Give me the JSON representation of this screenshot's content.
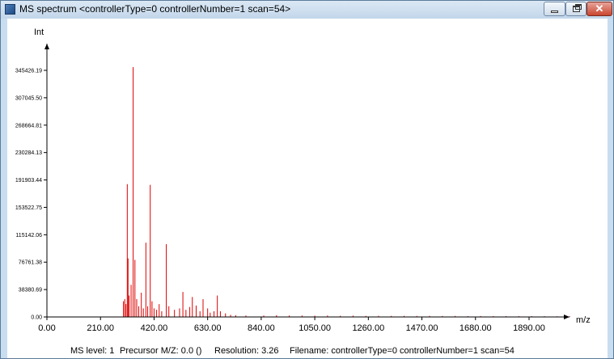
{
  "window": {
    "title": "MS spectrum <controllerType=0 controllerNumber=1 scan=54>",
    "icon": "app-icon",
    "controls": {
      "minimize": "minimize-icon",
      "maximize": "restore-icon",
      "close": "✕"
    }
  },
  "status": {
    "ms_level": "MS level: 1",
    "precursor": "Precursor M/Z: 0.0 ()",
    "resolution": "Resolution: 3.26",
    "filename": "Filename: controllerType=0 controllerNumber=1 scan=54"
  },
  "colors": {
    "peaks": "#dd0000",
    "titlebar": "#c9ddf0"
  },
  "chart_data": {
    "type": "bar",
    "ylabel": "Int",
    "xlabel": "m/z",
    "xlim": [
      0,
      2100
    ],
    "ylim": [
      0,
      383807.06
    ],
    "x_ticks": [
      "0.00",
      "210.00",
      "420.00",
      "630.00",
      "840.00",
      "1050.00",
      "1260.00",
      "1470.00",
      "1680.00",
      "1890.00"
    ],
    "y_ticks": [
      "0.00",
      "38380.69",
      "76761.38",
      "115142.06",
      "153522.75",
      "191903.44",
      "230284.13",
      "268664.81",
      "307045.50",
      "345426.19"
    ],
    "peaks": [
      [
        300,
        22000
      ],
      [
        305,
        25000
      ],
      [
        310,
        18000
      ],
      [
        315,
        186000
      ],
      [
        318,
        82000
      ],
      [
        322,
        30000
      ],
      [
        330,
        45000
      ],
      [
        338,
        350000
      ],
      [
        345,
        80000
      ],
      [
        352,
        25000
      ],
      [
        360,
        15000
      ],
      [
        370,
        34000
      ],
      [
        378,
        12000
      ],
      [
        388,
        104000
      ],
      [
        395,
        15000
      ],
      [
        405,
        185000
      ],
      [
        412,
        22000
      ],
      [
        420,
        12000
      ],
      [
        430,
        10000
      ],
      [
        440,
        18000
      ],
      [
        450,
        8000
      ],
      [
        468,
        102000
      ],
      [
        478,
        15000
      ],
      [
        500,
        10000
      ],
      [
        520,
        12000
      ],
      [
        533,
        35000
      ],
      [
        545,
        10000
      ],
      [
        560,
        14000
      ],
      [
        570,
        28000
      ],
      [
        585,
        16000
      ],
      [
        600,
        8000
      ],
      [
        612,
        25000
      ],
      [
        630,
        12000
      ],
      [
        640,
        6000
      ],
      [
        655,
        8000
      ],
      [
        668,
        30000
      ],
      [
        680,
        8000
      ],
      [
        700,
        5000
      ],
      [
        720,
        3000
      ],
      [
        740,
        2500
      ],
      [
        780,
        2000
      ],
      [
        850,
        2000
      ],
      [
        900,
        2500
      ],
      [
        950,
        2000
      ],
      [
        1000,
        2000
      ],
      [
        1050,
        1800
      ],
      [
        1100,
        2000
      ],
      [
        1150,
        1600
      ],
      [
        1200,
        1800
      ],
      [
        1250,
        1500
      ],
      [
        1300,
        1600
      ],
      [
        1350,
        1500
      ],
      [
        1400,
        1500
      ],
      [
        1450,
        1400
      ],
      [
        1500,
        1500
      ],
      [
        1550,
        1300
      ],
      [
        1600,
        1400
      ],
      [
        1650,
        1200
      ],
      [
        1700,
        1300
      ],
      [
        1750,
        1200
      ],
      [
        1800,
        1200
      ],
      [
        1850,
        1100
      ],
      [
        1900,
        1100
      ],
      [
        1950,
        1000
      ],
      [
        2000,
        900
      ],
      [
        2050,
        800
      ]
    ]
  }
}
